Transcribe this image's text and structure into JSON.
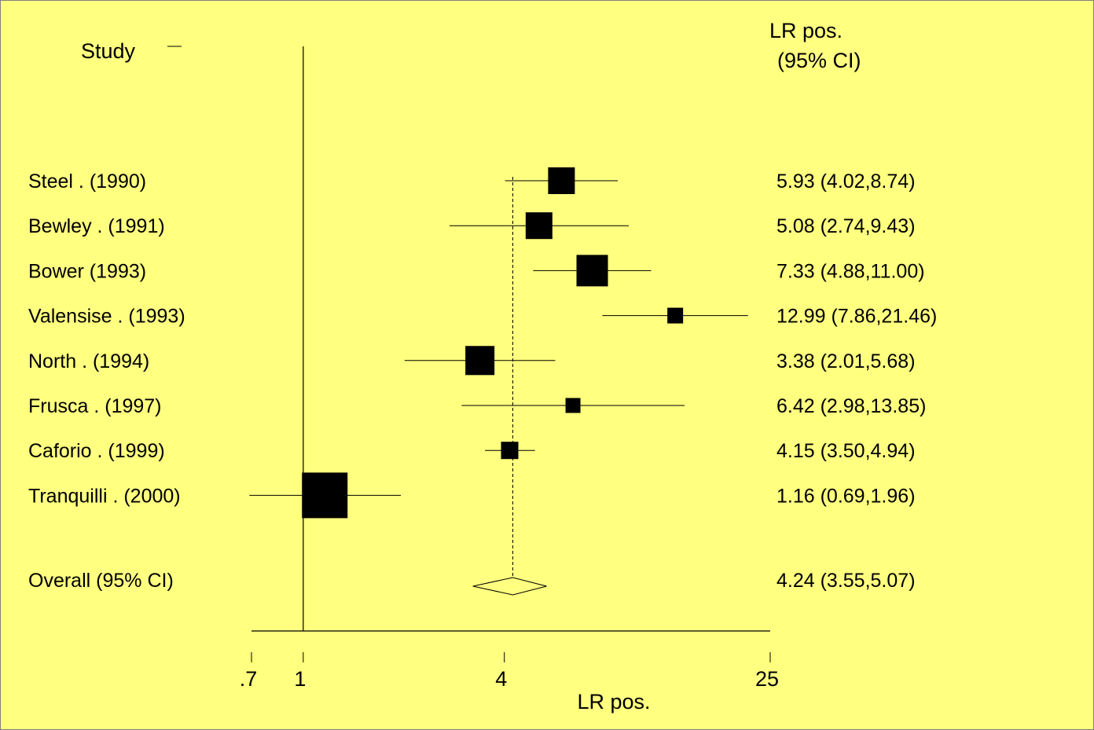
{
  "chart_data": {
    "type": "forest",
    "study_header": "Study",
    "stat_header_line1": "LR pos.",
    "stat_header_line2": "(95% CI)",
    "xlabel": "LR pos.",
    "x_scale": "log",
    "xlim": [
      0.7,
      25
    ],
    "null_value": 1,
    "x_ticks": [
      {
        "value": 0.7,
        "label": ".7"
      },
      {
        "value": 1,
        "label": "1"
      },
      {
        "value": 4,
        "label": "4"
      },
      {
        "value": 25,
        "label": "25"
      }
    ],
    "studies": [
      {
        "label": "Steel . (1990)",
        "estimate": 5.93,
        "lower": 4.02,
        "upper": 8.74,
        "ci_text": "5.93 (4.02,8.74)",
        "weight": 34
      },
      {
        "label": "Bewley . (1991)",
        "estimate": 5.08,
        "lower": 2.74,
        "upper": 9.43,
        "ci_text": "5.08 (2.74,9.43)",
        "weight": 34
      },
      {
        "label": "Bower (1993)",
        "estimate": 7.33,
        "lower": 4.88,
        "upper": 11.0,
        "ci_text": "7.33 (4.88,11.00)",
        "weight": 40
      },
      {
        "label": "Valensise . (1993)",
        "estimate": 12.99,
        "lower": 7.86,
        "upper": 21.46,
        "ci_text": "12.99 (7.86,21.46)",
        "weight": 20
      },
      {
        "label": "North . (1994)",
        "estimate": 3.38,
        "lower": 2.01,
        "upper": 5.68,
        "ci_text": "3.38 (2.01,5.68)",
        "weight": 37
      },
      {
        "label": "Frusca . (1997)",
        "estimate": 6.42,
        "lower": 2.98,
        "upper": 13.85,
        "ci_text": "6.42 (2.98,13.85)",
        "weight": 19
      },
      {
        "label": "Caforio . (1999)",
        "estimate": 4.15,
        "lower": 3.5,
        "upper": 4.94,
        "ci_text": "4.15 (3.50,4.94)",
        "weight": 22
      },
      {
        "label": "Tranquilli . (2000)",
        "estimate": 1.16,
        "lower": 0.69,
        "upper": 1.96,
        "ci_text": "1.16 (0.69,1.96)",
        "weight": 58
      }
    ],
    "overall": {
      "label": "Overall (95% CI)",
      "estimate": 4.24,
      "lower": 3.55,
      "upper": 5.07,
      "ci_text": "4.24 (3.55,5.07)"
    },
    "colors": {
      "background": "#ffff80",
      "marks": "#000000",
      "frame": "#808080"
    }
  }
}
